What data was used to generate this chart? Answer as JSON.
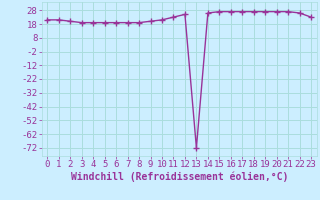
{
  "x": [
    0,
    1,
    2,
    3,
    4,
    5,
    6,
    7,
    8,
    9,
    10,
    11,
    12,
    13,
    14,
    15,
    16,
    17,
    18,
    19,
    20,
    21,
    22,
    23
  ],
  "y": [
    21,
    21,
    20,
    19,
    19,
    19,
    19,
    19,
    19,
    20,
    21,
    23,
    25,
    -72,
    26,
    27,
    27,
    27,
    27,
    27,
    27,
    27,
    26,
    23
  ],
  "line_color": "#993399",
  "marker": "+",
  "marker_size": 4,
  "marker_linewidth": 1.0,
  "line_width": 1.0,
  "bg_color": "#cceeff",
  "grid_color": "#aadddd",
  "xlabel": "Windchill (Refroidissement éolien,°C)",
  "xlabel_color": "#993399",
  "xlabel_fontsize": 7,
  "tick_color": "#993399",
  "tick_fontsize": 6.5,
  "yticks": [
    28,
    18,
    8,
    -2,
    -12,
    -22,
    -32,
    -42,
    -52,
    -62,
    -72
  ],
  "xticks": [
    0,
    1,
    2,
    3,
    4,
    5,
    6,
    7,
    8,
    9,
    10,
    11,
    12,
    13,
    14,
    15,
    16,
    17,
    18,
    19,
    20,
    21,
    22,
    23
  ],
  "ylim": [
    -78,
    34
  ],
  "xlim": [
    -0.5,
    23.5
  ]
}
